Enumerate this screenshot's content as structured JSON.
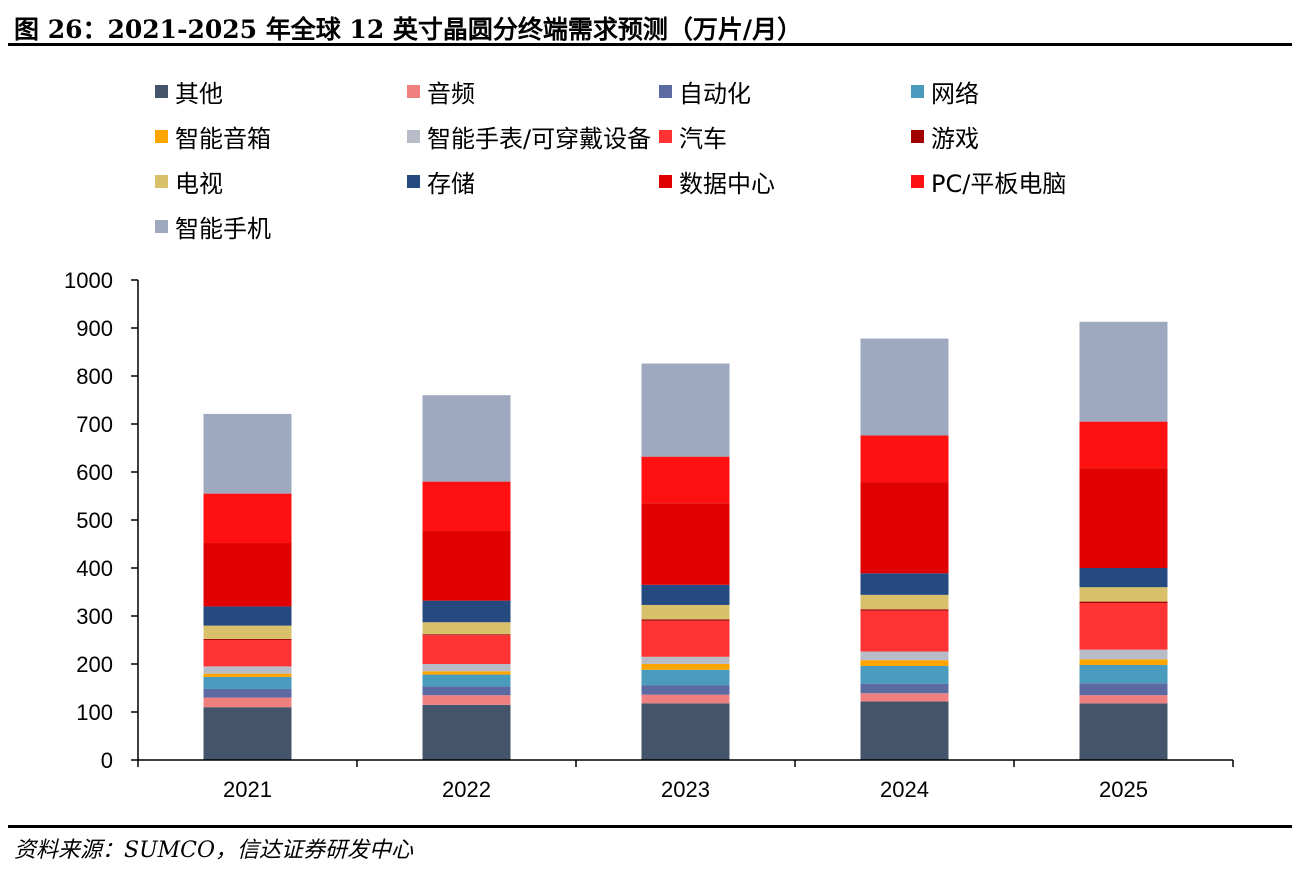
{
  "header": {
    "title": "图 26：2021-2025 年全球 12 英寸晶圆分终端需求预测（万片/月）"
  },
  "footer": {
    "source": "资料来源：SUMCO，信达证券研发中心"
  },
  "chart_data": {
    "type": "bar",
    "stacked": true,
    "categories": [
      "2021",
      "2022",
      "2023",
      "2024",
      "2025"
    ],
    "ylim": [
      0,
      1000
    ],
    "yticks": [
      "0",
      "100",
      "200",
      "300",
      "400",
      "500",
      "600",
      "700",
      "800",
      "900",
      "1000"
    ],
    "legend_position": "top",
    "series": [
      {
        "name": "其他",
        "color": "#44546a",
        "values": [
          110,
          115,
          118,
          122,
          118
        ]
      },
      {
        "name": "音频",
        "color": "#f08080",
        "values": [
          20,
          20,
          18,
          17,
          17
        ]
      },
      {
        "name": "自动化",
        "color": "#5b6aa0",
        "values": [
          18,
          18,
          20,
          20,
          25
        ]
      },
      {
        "name": "网络",
        "color": "#4a9bbd",
        "values": [
          25,
          25,
          32,
          37,
          38
        ]
      },
      {
        "name": "智能音箱",
        "color": "#ffa500",
        "values": [
          7,
          7,
          12,
          12,
          12
        ]
      },
      {
        "name": "智能手表/可穿戴设备",
        "color": "#b8bcc8",
        "values": [
          15,
          15,
          15,
          18,
          20
        ]
      },
      {
        "name": "汽车",
        "color": "#ff3333",
        "values": [
          55,
          60,
          75,
          85,
          97
        ]
      },
      {
        "name": "游戏",
        "color": "#a00000",
        "values": [
          2,
          2,
          3,
          3,
          3
        ]
      },
      {
        "name": "电视",
        "color": "#d9c06a",
        "values": [
          28,
          25,
          30,
          30,
          30
        ]
      },
      {
        "name": "存储",
        "color": "#254a80",
        "values": [
          40,
          45,
          42,
          45,
          40
        ]
      },
      {
        "name": "数据中心",
        "color": "#e00000",
        "values": [
          132,
          145,
          170,
          190,
          208
        ]
      },
      {
        "name": "PC/平板电脑",
        "color": "#ff1111",
        "values": [
          103,
          103,
          97,
          97,
          97
        ]
      },
      {
        "name": "智能手机",
        "color": "#9ea9c0",
        "values": [
          166,
          180,
          194,
          202,
          208
        ]
      }
    ]
  }
}
